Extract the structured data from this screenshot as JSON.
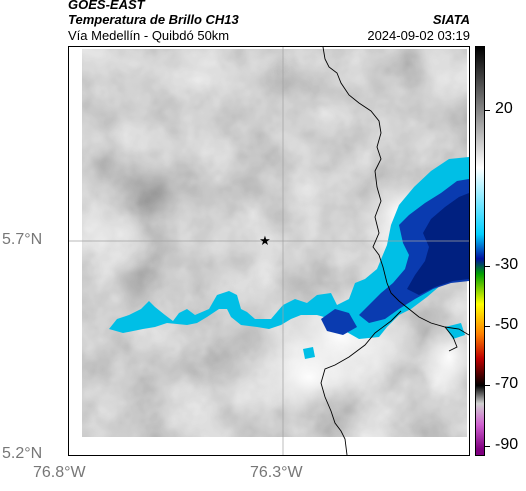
{
  "header": {
    "satellite": "GOES-EAST",
    "product": "Temperatura de Brillo CH13",
    "route": "Vía Medellín - Quibdó 50km",
    "agency": "SIATA",
    "datetime": "2024-09-02 03:19"
  },
  "map": {
    "lat_ticks": [
      {
        "label": "5.7°N",
        "value": 5.7
      },
      {
        "label": "5.2°N",
        "value": 5.2
      }
    ],
    "lon_ticks": [
      {
        "label": "76.8°W",
        "value": -76.8
      },
      {
        "label": "76.3°W",
        "value": -76.3
      }
    ],
    "marker_symbol": "★",
    "colors": {
      "cloud_gray": "#8f8f8f",
      "cold_cyan": "#00bfe6",
      "cold_blue": "#0a3bb0",
      "cold_navy": "#002080",
      "border_line": "#000000",
      "grid_line": "#a0a0a0"
    }
  },
  "colorbar": {
    "labels": [
      "20",
      "-30",
      "-50",
      "-70",
      "-90"
    ],
    "values": [
      20,
      -30,
      -50,
      -70,
      -90
    ],
    "stops": [
      {
        "value": 40,
        "color": "#000000"
      },
      {
        "value": 0,
        "color": "#ffffff"
      },
      {
        "value": -22,
        "color": "#00d0ff"
      },
      {
        "value": -30,
        "color": "#0010a0"
      },
      {
        "value": -35,
        "color": "#00a000"
      },
      {
        "value": -45,
        "color": "#ffff00"
      },
      {
        "value": -55,
        "color": "#ff8000"
      },
      {
        "value": -63,
        "color": "#c00000"
      },
      {
        "value": -72,
        "color": "#000000"
      },
      {
        "value": -78,
        "color": "#d0d0d0"
      },
      {
        "value": -85,
        "color": "#d060d0"
      },
      {
        "value": -93,
        "color": "#800080"
      }
    ]
  }
}
